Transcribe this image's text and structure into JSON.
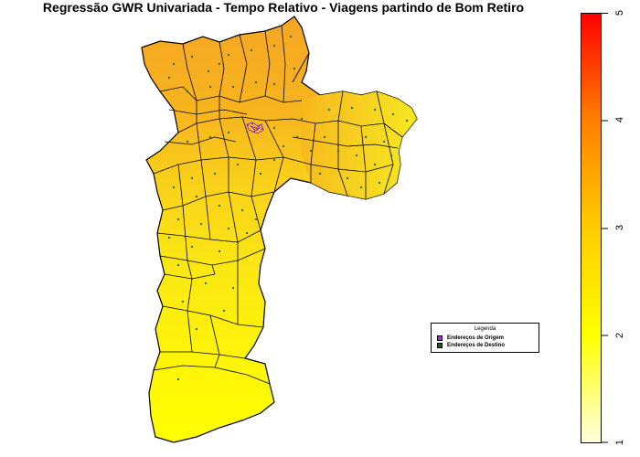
{
  "title": "Regressão GWR Univariada - Tempo Relativo - Viagens partindo de Bom Retiro",
  "legend": {
    "title": "Legenda",
    "items": [
      {
        "label": "Endereços de Origem",
        "color": "#9933cc"
      },
      {
        "label": "Endereços de Destino",
        "color": "#1a5c1a"
      }
    ]
  },
  "colorbar": {
    "min": 1,
    "max": 5,
    "ticks": [
      "1",
      "2",
      "3",
      "4",
      "5"
    ],
    "colors": [
      "#ffffe0",
      "#ffff00",
      "#ffcc00",
      "#ff8000",
      "#ff0000"
    ]
  },
  "map_colors": {
    "north": "#f5a623",
    "center": "#f9c21a",
    "east": "#f5e020",
    "south": "#ffff00",
    "border": "#000000",
    "dots": "#1a5c1a",
    "origin": "#9933cc"
  }
}
